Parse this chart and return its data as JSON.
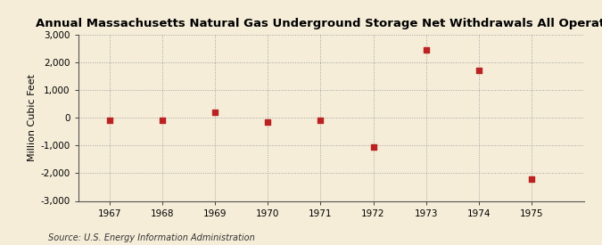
{
  "title": "Annual Massachusetts Natural Gas Underground Storage Net Withdrawals All Operators",
  "ylabel": "Million Cubic Feet",
  "source": "Source: U.S. Energy Information Administration",
  "years": [
    1967,
    1968,
    1969,
    1970,
    1971,
    1972,
    1973,
    1974,
    1975
  ],
  "values": [
    -100,
    -100,
    200,
    -150,
    -100,
    -1050,
    2450,
    1700,
    -2200
  ],
  "marker_color": "#bb2222",
  "background_color": "#f5edd8",
  "plot_bg_color": "#f5edd8",
  "grid_color": "#999999",
  "ylim": [
    -3000,
    3000
  ],
  "yticks": [
    -3000,
    -2000,
    -1000,
    0,
    1000,
    2000,
    3000
  ],
  "xlim": [
    1966.4,
    1976.0
  ],
  "xticks": [
    1967,
    1968,
    1969,
    1970,
    1971,
    1972,
    1973,
    1974,
    1975
  ],
  "title_fontsize": 9.5,
  "label_fontsize": 8,
  "tick_fontsize": 7.5,
  "source_fontsize": 7
}
